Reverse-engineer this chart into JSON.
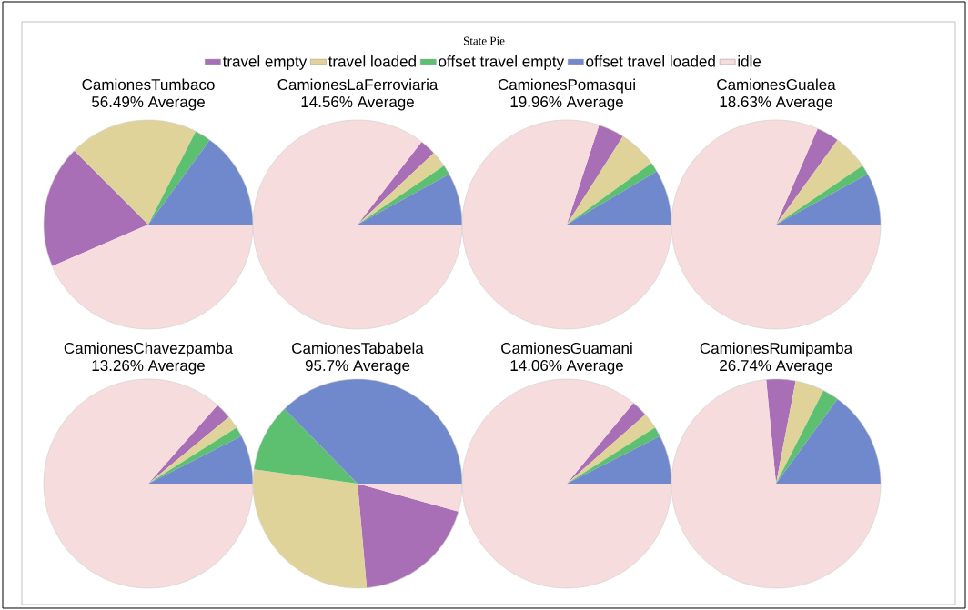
{
  "chart_data": [
    {
      "type": "pie",
      "title": "CamionesTumbaco",
      "subtitle": "56.49% Average",
      "annotations": [
        "State Pie"
      ],
      "legend": "top",
      "categories": [
        "travel empty",
        "travel loaded",
        "offset travel empty",
        "offset travel loaded",
        "idle"
      ],
      "colors": [
        "#a86fb6",
        "#e0d39a",
        "#5cc070",
        "#7088cc",
        "#f6dcdc"
      ],
      "values": [
        19,
        20,
        2.5,
        15,
        43.5
      ]
    },
    {
      "type": "pie",
      "title": "CamionesLaFerroviaria",
      "subtitle": "14.56% Average",
      "categories": [
        null,
        null,
        null,
        null,
        null
      ],
      "colors": [
        "#a86fb6",
        "#e0d39a",
        "#5cc070",
        "#7088cc",
        "#f6dcdc"
      ],
      "values": [
        2.5,
        2.5,
        1.5,
        8,
        85.5
      ]
    },
    {
      "type": "pie",
      "title": "CamionesPomasqui",
      "subtitle": "19.96% Average",
      "categories": [
        null,
        null,
        null,
        null,
        null
      ],
      "colors": [
        "#a86fb6",
        "#e0d39a",
        "#5cc070",
        "#7088cc",
        "#f6dcdc"
      ],
      "values": [
        4,
        6,
        1.5,
        8.5,
        80
      ]
    },
    {
      "type": "pie",
      "title": "CamionesGualea",
      "subtitle": "18.63% Average",
      "categories": [
        null,
        null,
        null,
        null,
        null
      ],
      "colors": [
        "#a86fb6",
        "#e0d39a",
        "#5cc070",
        "#7088cc",
        "#f6dcdc"
      ],
      "values": [
        3.5,
        5.5,
        1.5,
        8,
        81.5
      ]
    },
    {
      "type": "pie",
      "title": "CamionesChavezpamba",
      "subtitle": "13.26% Average",
      "categories": [
        null,
        null,
        null,
        null,
        null
      ],
      "colors": [
        "#a86fb6",
        "#e0d39a",
        "#5cc070",
        "#7088cc",
        "#f6dcdc"
      ],
      "values": [
        2.5,
        2,
        1.5,
        7.5,
        86.5
      ]
    },
    {
      "type": "pie",
      "title": "CamionesTababela",
      "subtitle": "95.7% Average",
      "categories": [
        null,
        null,
        null,
        null,
        null
      ],
      "colors": [
        "#a86fb6",
        "#e0d39a",
        "#5cc070",
        "#7088cc",
        "#f6dcdc"
      ],
      "values": [
        19.3,
        28.6,
        10.5,
        37.3,
        4.3
      ]
    },
    {
      "type": "pie",
      "title": "CamionesGuamani",
      "subtitle": "14.06% Average",
      "categories": [
        null,
        null,
        null,
        null,
        null
      ],
      "colors": [
        "#a86fb6",
        "#e0d39a",
        "#5cc070",
        "#7088cc",
        "#f6dcdc"
      ],
      "values": [
        2.5,
        2.5,
        1.5,
        7.5,
        86
      ]
    },
    {
      "type": "pie",
      "title": "CamionesRumipamba",
      "subtitle": "26.74% Average",
      "categories": [
        null,
        null,
        null,
        null,
        null
      ],
      "colors": [
        "#a86fb6",
        "#e0d39a",
        "#5cc070",
        "#7088cc",
        "#f6dcdc"
      ],
      "values": [
        4.5,
        4.5,
        2.5,
        15,
        73.5
      ]
    }
  ]
}
